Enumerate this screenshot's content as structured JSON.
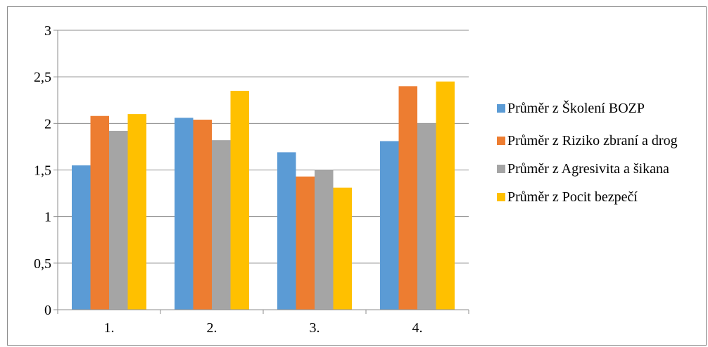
{
  "chart_data": {
    "type": "bar",
    "categories": [
      "1.",
      "2.",
      "3.",
      "4."
    ],
    "ylim": [
      0,
      3
    ],
    "yticks": [
      "0",
      "0,5",
      "1",
      "1,5",
      "2",
      "2,5",
      "3"
    ],
    "ytick_values": [
      0,
      0.5,
      1,
      1.5,
      2,
      2.5,
      3
    ],
    "grid": true,
    "legend_position": "right",
    "series": [
      {
        "name": "Průměr z Školení BOZP",
        "color": "#5b9bd5",
        "values": [
          1.55,
          2.06,
          1.69,
          1.81
        ]
      },
      {
        "name": "Průměr z Riziko zbraní a drog",
        "color": "#ed7d31",
        "values": [
          2.08,
          2.04,
          1.43,
          2.4
        ]
      },
      {
        "name": "Průměr z Agresivita a šikana",
        "color": "#a5a5a5",
        "values": [
          1.92,
          1.82,
          1.5,
          2.0
        ]
      },
      {
        "name": "Průměr z Pocit bezpečí",
        "color": "#ffc000",
        "values": [
          2.1,
          2.35,
          1.31,
          2.45
        ]
      }
    ]
  }
}
